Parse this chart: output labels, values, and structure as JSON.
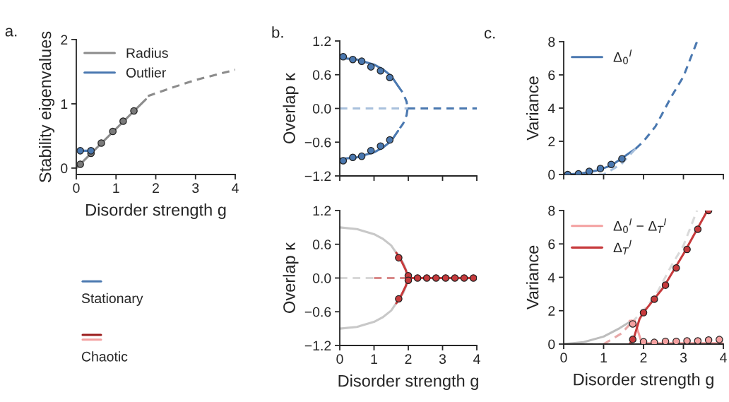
{
  "chart_data": [
    {
      "type": "line",
      "title": "a.",
      "xlabel": "Disorder strength g",
      "ylabel": "Stability eigenvalues",
      "xlim": [
        0,
        4
      ],
      "ylim": [
        -0.1,
        2
      ],
      "xticks": [
        0,
        1,
        2,
        3,
        4
      ],
      "yticks": [
        0,
        1,
        2
      ],
      "legend": "top left",
      "grid": false,
      "annotations": [
        "Stationary",
        "Chaotic"
      ],
      "series": [
        {
          "name": "Radius",
          "color": "#8c8c8c",
          "line_style": "solid",
          "x": [
            0,
            1.75
          ],
          "values": [
            0,
            1.07
          ]
        },
        {
          "color": "#8c8c8c",
          "line_style": "dashed",
          "x": [
            1.8,
            2.5,
            3.0,
            3.5,
            4.0
          ],
          "values": [
            1.12,
            1.27,
            1.37,
            1.45,
            1.53
          ]
        },
        {
          "name": "Outlier",
          "color": "#4a78b0",
          "line_style": "solid",
          "x": [
            0.1,
            0.37
          ],
          "values": [
            0.27,
            0.27
          ]
        },
        {
          "color": "#7a7a7a",
          "type": "scatter",
          "marker": "circle",
          "x": [
            0.1,
            0.37,
            0.63,
            0.92,
            1.18,
            1.45
          ],
          "values": [
            0.06,
            0.23,
            0.39,
            0.57,
            0.73,
            0.89
          ]
        },
        {
          "color": "#4a78b0",
          "type": "scatter",
          "marker": "circle",
          "x": [
            0.1,
            0.37
          ],
          "values": [
            0.27,
            0.27
          ]
        }
      ]
    },
    {
      "type": "line",
      "title": "b.",
      "ylabel": "Overlap κ",
      "xlim": [
        0,
        4
      ],
      "ylim": [
        -1.2,
        1.2
      ],
      "xticks": [
        0,
        1,
        2,
        3,
        4
      ],
      "tick_labels": "y",
      "yticks": [
        1.2,
        0.6,
        {
          "value": 0,
          "label": "0.0"
        },
        {
          "value": -0.6,
          "label": "−0.6"
        },
        {
          "value": -1.2,
          "label": "−1.2"
        }
      ],
      "grid": false,
      "series": [
        {
          "color": "#4a78b0",
          "line_style": "solid",
          "x": [
            0,
            0.5,
            1.0,
            1.25,
            1.5,
            1.7
          ],
          "values": [
            0.9,
            0.87,
            0.78,
            0.7,
            0.58,
            0.4
          ]
        },
        {
          "color": "#4a78b0",
          "line_style": "dashed",
          "x": [
            1.7,
            1.85,
            1.95,
            1.98,
            1.95,
            1.85,
            1.7
          ],
          "values": [
            0.4,
            0.27,
            0.12,
            0,
            -0.12,
            -0.27,
            -0.4
          ]
        },
        {
          "color": "#4a78b0",
          "line_style": "solid",
          "x": [
            0,
            0.5,
            1.0,
            1.25,
            1.5,
            1.7
          ],
          "values": [
            -0.9,
            -0.87,
            -0.78,
            -0.7,
            -0.58,
            -0.4
          ]
        },
        {
          "color": "#a8c0dc",
          "line_style": "dashed",
          "x": [
            0,
            1.98
          ],
          "values": [
            0,
            0
          ]
        },
        {
          "color": "#4a78b0",
          "line_style": "dashed",
          "x": [
            1.98,
            4
          ],
          "values": [
            0,
            0
          ]
        },
        {
          "color": "#4a78b0",
          "type": "scatter",
          "marker": "circle",
          "x": [
            0.1,
            0.38,
            0.64,
            0.91,
            1.19,
            1.46
          ],
          "values": [
            0.92,
            0.87,
            0.84,
            0.74,
            0.67,
            0.55
          ]
        },
        {
          "color": "#4a78b0",
          "type": "scatter",
          "marker": "circle",
          "x": [
            0.1,
            0.38,
            0.64,
            0.91,
            1.19,
            1.46
          ],
          "values": [
            -0.93,
            -0.87,
            -0.85,
            -0.75,
            -0.67,
            -0.56
          ]
        }
      ]
    },
    {
      "type": "line",
      "xlabel": "Disorder strength g",
      "ylabel": "Overlap κ",
      "xlim": [
        0,
        4
      ],
      "ylim": [
        -1.2,
        1.2
      ],
      "xticks": [
        0,
        1,
        2,
        3,
        4
      ],
      "yticks": [
        1.2,
        0.6,
        {
          "value": 0,
          "label": "0.0"
        },
        {
          "value": -0.6,
          "label": "−0.6"
        },
        {
          "value": -1.2,
          "label": "−1.2"
        }
      ],
      "grid": false,
      "series": [
        {
          "color": "#c8c8c8",
          "line_style": "solid",
          "x": [
            0,
            0.5,
            1.0,
            1.25,
            1.5,
            1.7,
            1.85,
            1.95,
            1.98,
            1.95,
            1.85,
            1.7,
            1.5,
            1.25,
            1.0,
            0.5,
            0
          ],
          "values": [
            0.9,
            0.87,
            0.78,
            0.7,
            0.58,
            0.4,
            0.27,
            0.12,
            0,
            -0.12,
            -0.27,
            -0.4,
            -0.58,
            -0.7,
            -0.78,
            -0.87,
            -0.9
          ]
        },
        {
          "color": "#d8d8d8",
          "line_style": "dashed",
          "x": [
            0,
            1.0
          ],
          "values": [
            0,
            0
          ]
        },
        {
          "color": "#d98a8a",
          "line_style": "dashed",
          "x": [
            1.0,
            1.98
          ],
          "values": [
            0,
            0
          ]
        },
        {
          "color": "#c73a3c",
          "line_style": "solid",
          "x": [
            1.65,
            1.8,
            1.92,
            2.0,
            1.92,
            1.8,
            1.65
          ],
          "values": [
            0.45,
            0.3,
            0.15,
            0,
            -0.15,
            -0.3,
            -0.45
          ]
        },
        {
          "color": "#c73a3c",
          "line_style": "solid",
          "x": [
            2.0,
            4.0
          ],
          "values": [
            0,
            0
          ]
        },
        {
          "color": "#c73a3c",
          "type": "scatter",
          "marker": "circle",
          "x": [
            1.72,
            1.72,
            2.0,
            2.0,
            2.27,
            2.54,
            2.81,
            3.09,
            3.36,
            3.63,
            3.9
          ],
          "values": [
            0.36,
            -0.37,
            0.04,
            -0.04,
            0,
            0,
            0,
            0,
            0,
            0,
            0
          ]
        }
      ]
    },
    {
      "type": "line",
      "title": "c.",
      "ylabel": "Variance",
      "xlim": [
        0,
        4
      ],
      "ylim": [
        0,
        8
      ],
      "xticks": [
        0,
        1,
        2,
        3,
        4
      ],
      "yticks": [
        0,
        2,
        4,
        6,
        8
      ],
      "tick_labels": "y",
      "legend": "top left",
      "grid": false,
      "series": [
        {
          "name": "Δ$_{0}$$^{I}$",
          "color": "#4a78b0",
          "line_style": "solid",
          "x": [
            0,
            0.4,
            0.8,
            1.2,
            1.5,
            1.8
          ],
          "values": [
            0,
            0.05,
            0.22,
            0.55,
            1.05,
            1.55
          ]
        },
        {
          "color": "#4a78b0",
          "line_style": "dashed",
          "x": [
            1.8,
            2.0,
            2.3,
            2.7,
            3.0,
            3.34
          ],
          "values": [
            1.55,
            2.0,
            2.9,
            4.7,
            5.9,
            8.0
          ]
        },
        {
          "color": "#a8c0dc",
          "line_style": "dashed",
          "x": [
            0.55,
            1.0,
            1.2,
            1.45,
            1.8
          ],
          "values": [
            0,
            0,
            0.28,
            0.64,
            1.55
          ]
        },
        {
          "color": "#4a78b0",
          "type": "scatter",
          "marker": "circle",
          "x": [
            0.1,
            0.37,
            0.64,
            0.92,
            1.19,
            1.46
          ],
          "values": [
            0,
            0.04,
            0.19,
            0.36,
            0.61,
            0.95
          ]
        }
      ]
    },
    {
      "type": "line",
      "xlabel": "Disorder strength g",
      "ylabel": "Variance",
      "xlim": [
        0,
        4
      ],
      "ylim": [
        0,
        8
      ],
      "xticks": [
        0,
        1,
        2,
        3,
        4
      ],
      "yticks": [
        0,
        2,
        4,
        6,
        8
      ],
      "legend": "top left",
      "grid": false,
      "series": [
        {
          "color": "#bdbdbd",
          "line_style": "solid",
          "x": [
            0,
            0.5,
            1.0,
            1.4,
            1.7
          ],
          "values": [
            0,
            0.12,
            0.45,
            0.95,
            1.4
          ]
        },
        {
          "color": "#dadada",
          "line_style": "dashed",
          "x": [
            0.55,
            1.0
          ],
          "values": [
            0,
            0
          ]
        },
        {
          "color": "#e8a8a8",
          "line_style": "dashed",
          "x": [
            1.0,
            1.2,
            1.45,
            1.7
          ],
          "values": [
            0,
            0.28,
            0.64,
            1.3
          ]
        },
        {
          "color": "#dadada",
          "line_style": "dashed",
          "x": [
            1.7,
            2.0,
            2.3,
            2.7,
            3.0,
            3.34
          ],
          "values": [
            1.3,
            2.0,
            2.9,
            4.7,
            5.9,
            8.0
          ]
        },
        {
          "name": "Δ$_{0}$$^{I}$ − Δ$_{T}$$^{I}$",
          "color": "#f4a0a0",
          "line_style": "solid",
          "x": [
            1.65,
            1.78,
            1.95,
            2.0,
            4.0
          ],
          "values": [
            1.4,
            1.4,
            0.1,
            0.05,
            0.05
          ]
        },
        {
          "name": "Δ$_{T}$$^{I}$",
          "color": "#c73a3c",
          "line_style": "solid",
          "x": [
            1.65,
            1.75,
            1.9,
            2.0,
            2.5,
            3.0,
            3.3,
            3.6
          ],
          "values": [
            0,
            0.3,
            1.5,
            1.9,
            3.4,
            5.4,
            6.7,
            8.0
          ]
        },
        {
          "color": "#f4a0a0",
          "type": "scatter",
          "marker": "circle",
          "x": [
            1.73,
            2.0,
            2.27,
            2.55,
            2.82,
            3.09,
            3.36,
            3.63,
            3.9
          ],
          "values": [
            1.21,
            0.14,
            0.1,
            0.16,
            0.16,
            0.19,
            0.19,
            0.24,
            0.27
          ]
        },
        {
          "color": "#c73a3c",
          "type": "scatter",
          "marker": "circle",
          "x": [
            1.73,
            2.0,
            2.27,
            2.55,
            2.82,
            3.09,
            3.36,
            3.63
          ],
          "values": [
            0.28,
            1.88,
            2.69,
            3.53,
            4.56,
            5.67,
            6.88,
            8.0
          ]
        }
      ]
    }
  ]
}
